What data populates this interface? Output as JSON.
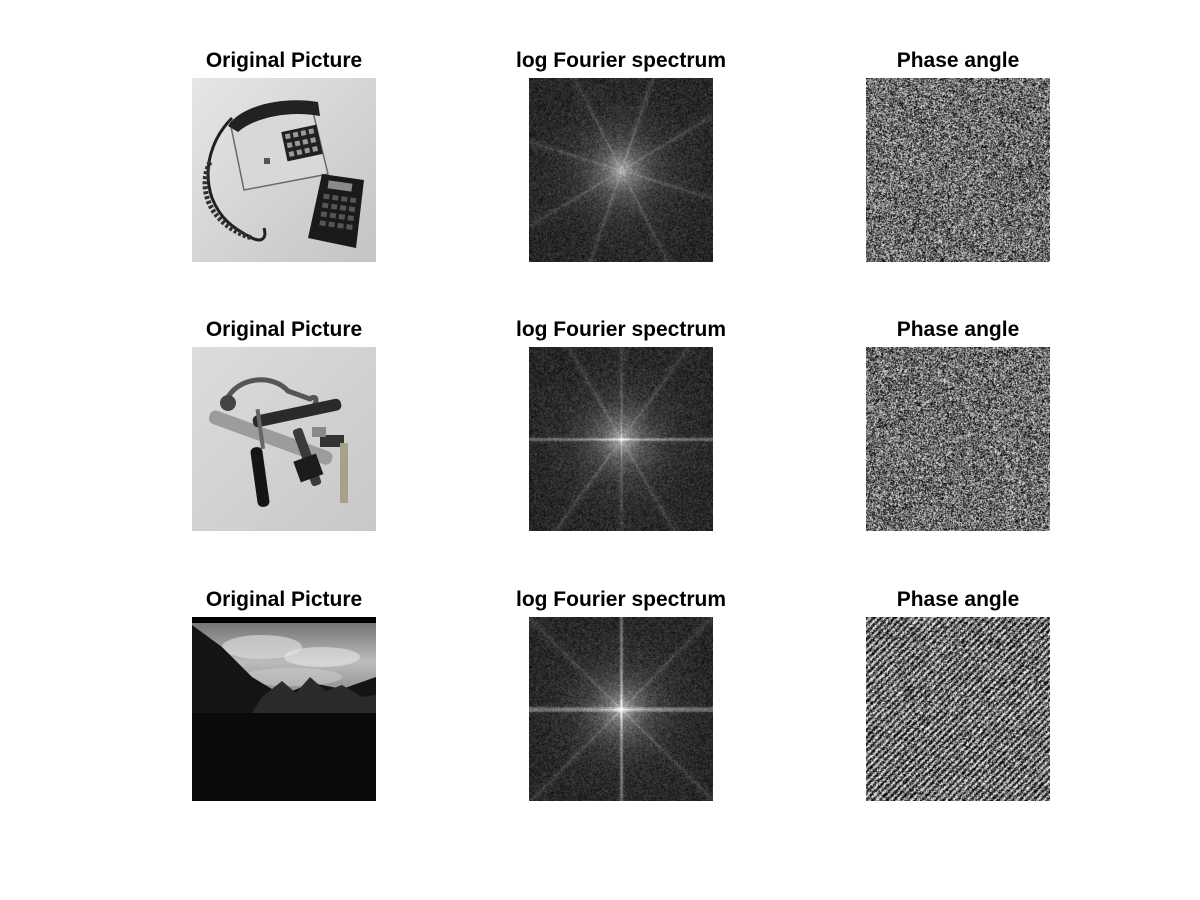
{
  "figure": {
    "rows": [
      {
        "cells": [
          {
            "title": "Original Picture",
            "content": "phone-image"
          },
          {
            "title": "log Fourier spectrum",
            "content": "spectrum-image"
          },
          {
            "title": "Phase angle",
            "content": "phase-image"
          }
        ]
      },
      {
        "cells": [
          {
            "title": "Original Picture",
            "content": "tools-image"
          },
          {
            "title": "log Fourier spectrum",
            "content": "spectrum-image"
          },
          {
            "title": "Phase angle",
            "content": "phase-image"
          }
        ]
      },
      {
        "cells": [
          {
            "title": "Original Picture",
            "content": "landscape-image"
          },
          {
            "title": "log Fourier spectrum",
            "content": "spectrum-image"
          },
          {
            "title": "Phase angle",
            "content": "phase-image"
          }
        ]
      }
    ]
  }
}
